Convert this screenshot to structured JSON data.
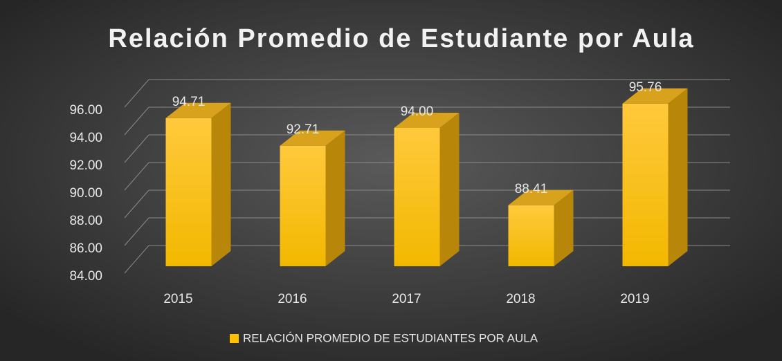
{
  "chart_data": {
    "type": "bar",
    "title": "Relación Promedio de Estudiante por Aula",
    "categories": [
      "2015",
      "2016",
      "2017",
      "2018",
      "2019"
    ],
    "series": [
      {
        "name": "RELACIÓN PROMEDIO DE ESTUDIANTES POR AULA",
        "color": "#ffc000",
        "values": [
          94.71,
          92.71,
          94.0,
          88.41,
          95.76
        ],
        "value_labels": [
          "94.71",
          "92.71",
          "94.00",
          "88.41",
          "95.76"
        ]
      }
    ],
    "ylim": [
      84,
      96
    ],
    "yticks": [
      {
        "value": 84,
        "label": "84.00"
      },
      {
        "value": 86,
        "label": "86.00"
      },
      {
        "value": 88,
        "label": "88.00"
      },
      {
        "value": 90,
        "label": "90.00"
      },
      {
        "value": 92,
        "label": "92.00"
      },
      {
        "value": 94,
        "label": "94.00"
      },
      {
        "value": 96,
        "label": "96.00"
      }
    ],
    "grid": true
  }
}
